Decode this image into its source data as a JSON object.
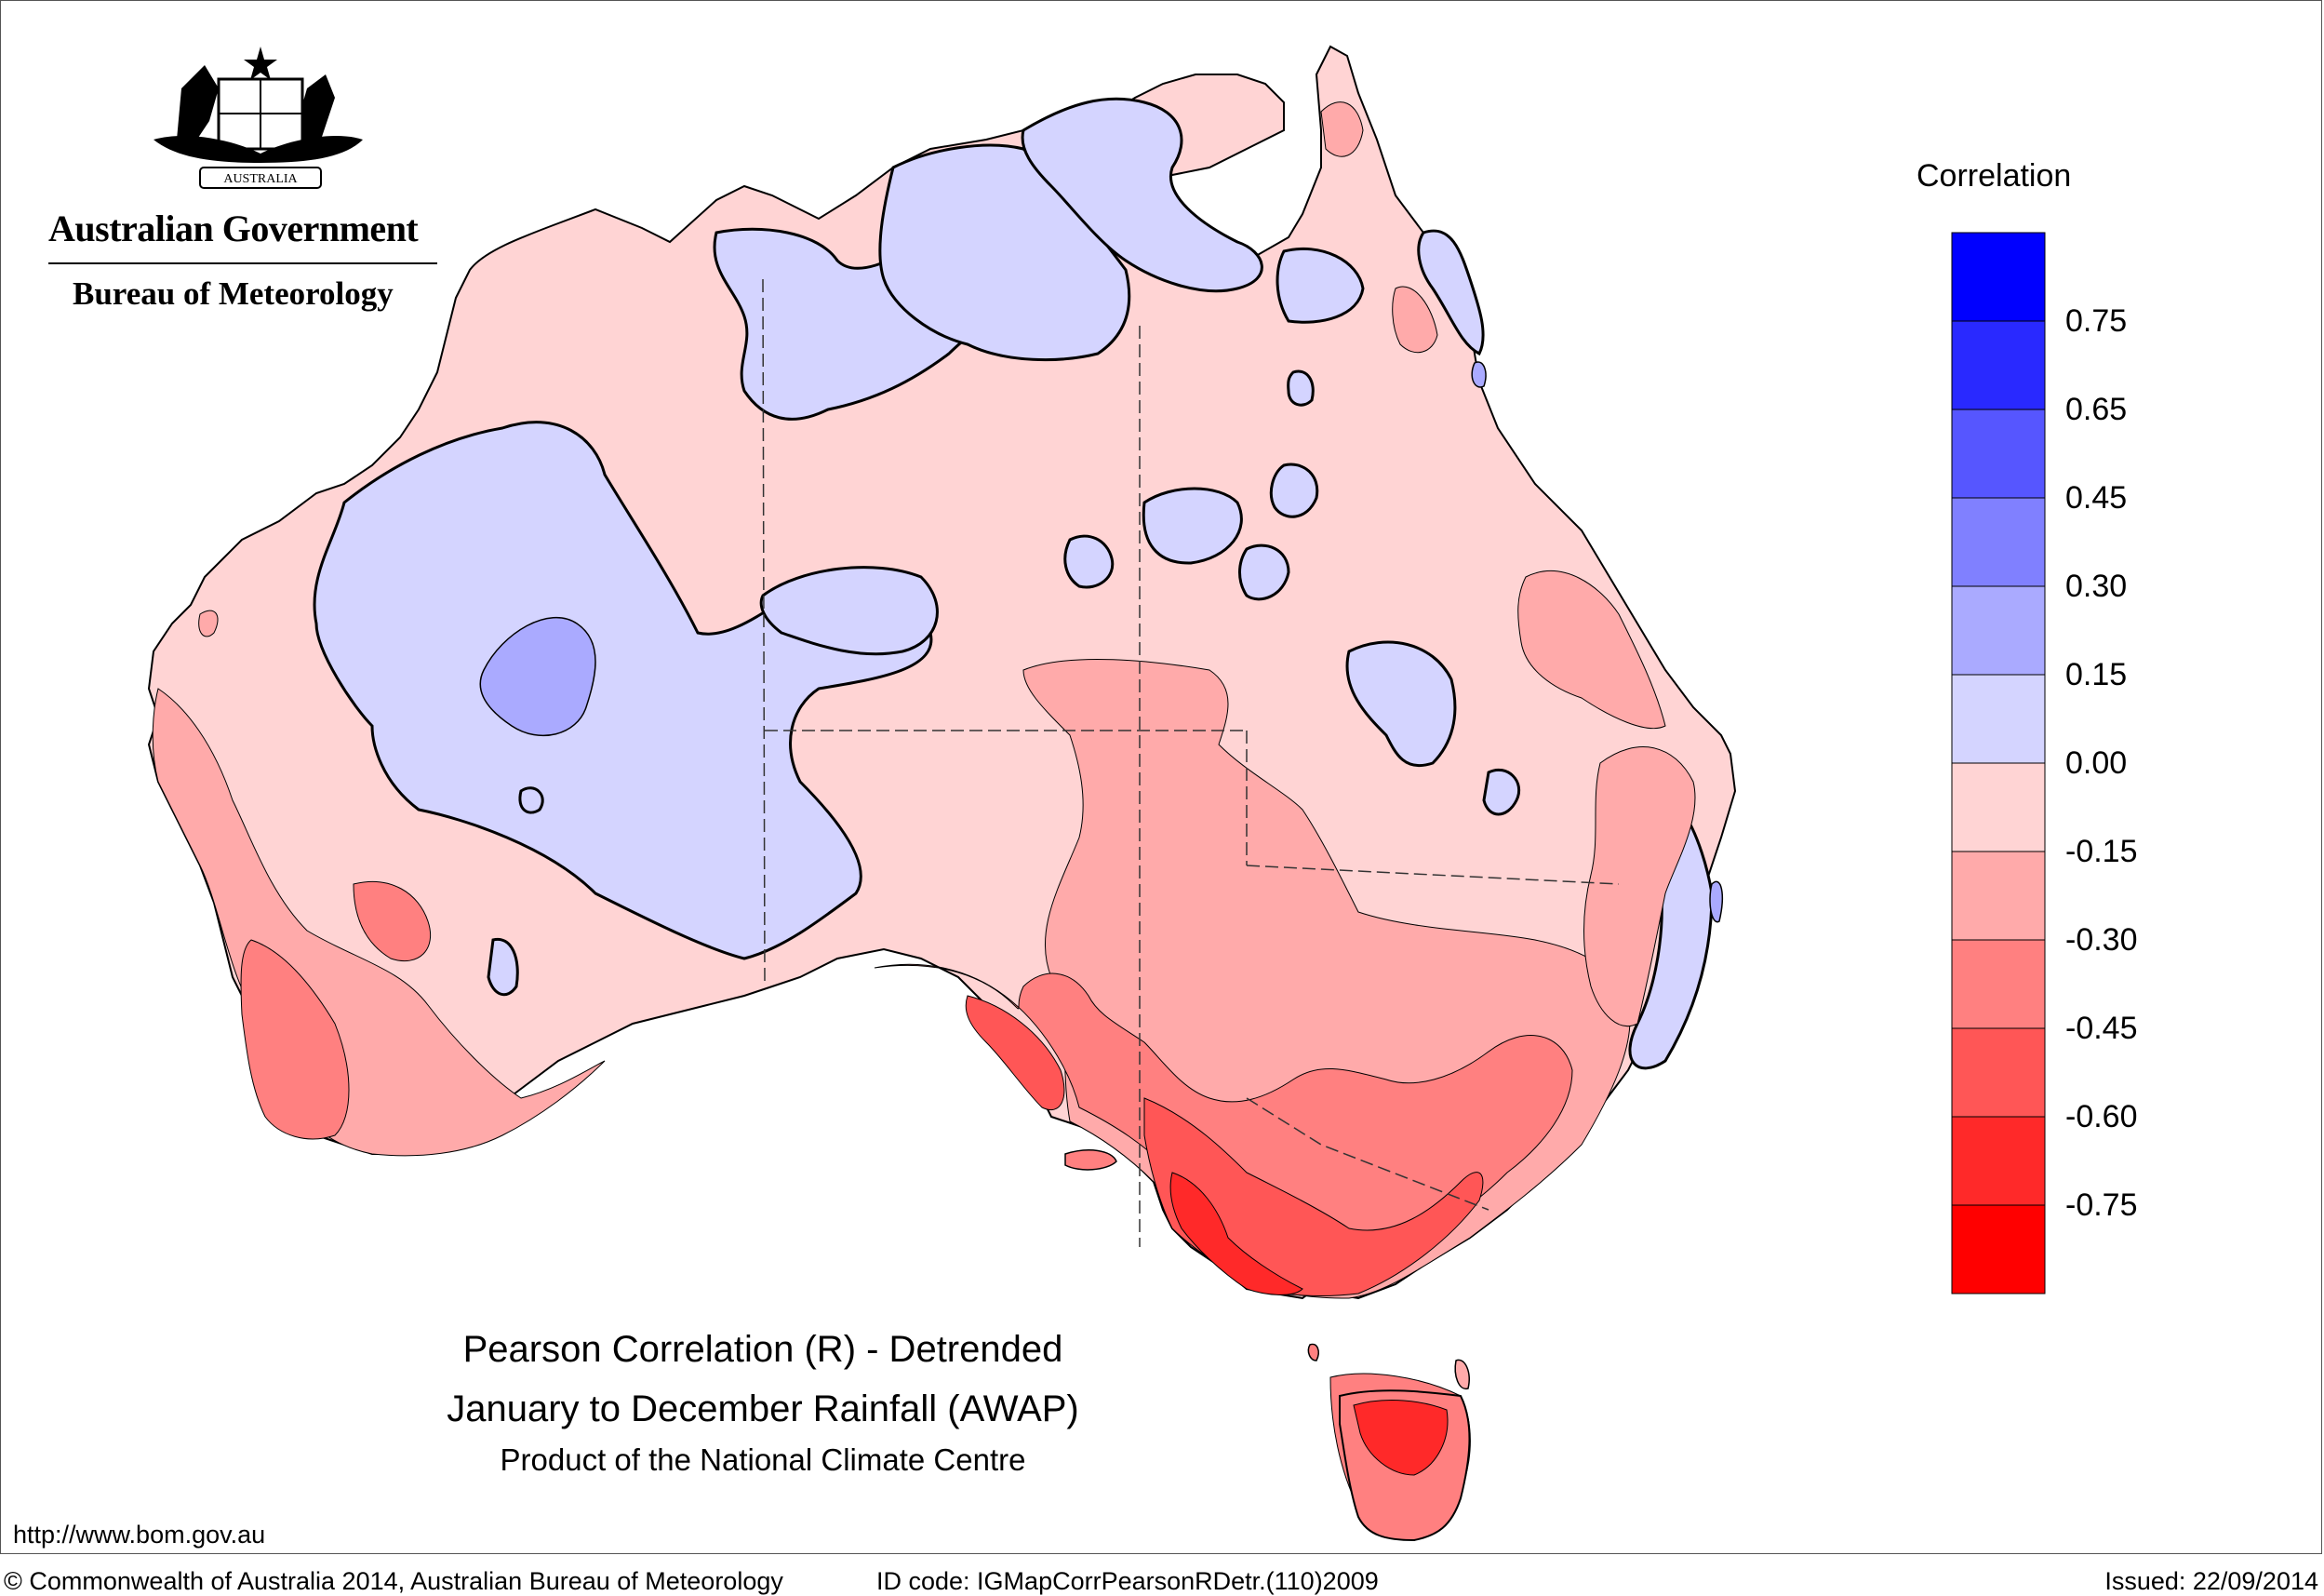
{
  "header": {
    "government": "Australian Government",
    "bureau": "Bureau of Meteorology",
    "crest_text": "AUSTRALIA"
  },
  "legend": {
    "title": "Correlation",
    "labels": [
      "0.75",
      "0.65",
      "0.45",
      "0.30",
      "0.15",
      "0.00",
      "-0.15",
      "-0.30",
      "-0.45",
      "-0.60",
      "-0.75"
    ],
    "colors": [
      "#0000ff",
      "#2929ff",
      "#5656ff",
      "#8080ff",
      "#aaaaff",
      "#d4d4ff",
      "#ffd4d4",
      "#ffaaaa",
      "#ff8080",
      "#ff5656",
      "#ff2929",
      "#ff0000"
    ]
  },
  "map_title": {
    "line1": "Pearson Correlation (R) - Detrended",
    "line2": "January to December Rainfall (AWAP)",
    "line3": "Product of the National Climate Centre"
  },
  "footer": {
    "url": "http://www.bom.gov.au",
    "copyright": "© Commonwealth of Australia 2014, Australian Bureau of Meteorology",
    "id_code": "ID code: IGMapCorrPearsonRDetr.(110)2009",
    "issued": "Issued: 22/09/2014"
  }
}
